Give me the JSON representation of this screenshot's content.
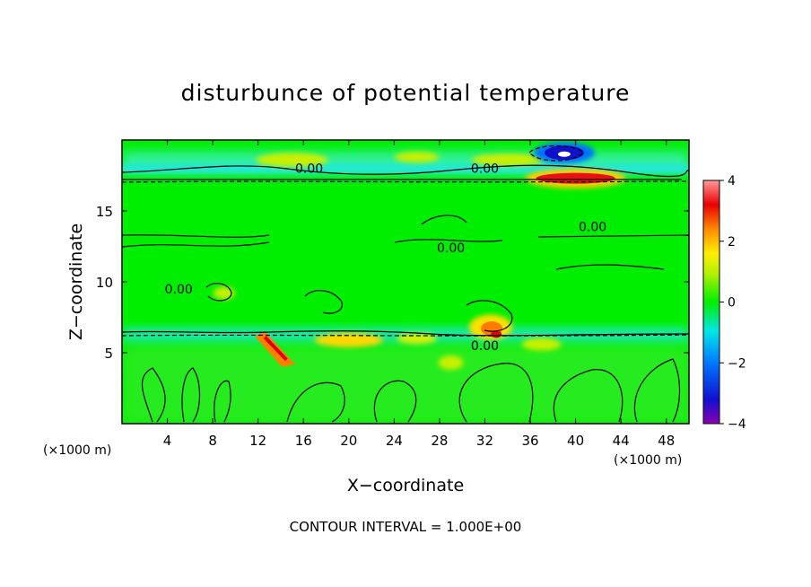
{
  "chart_data": {
    "type": "heatmap",
    "title": "disturbunce of potential temperature",
    "xlabel": "X−coordinate",
    "ylabel": "Z−coordinate",
    "x_unit_left": "(×1000 m)",
    "x_unit_right": "(×1000 m)",
    "xlim": [
      0,
      50
    ],
    "ylim": [
      0,
      20
    ],
    "x_ticks": [
      4,
      8,
      12,
      16,
      20,
      24,
      28,
      32,
      36,
      40,
      44,
      48
    ],
    "y_ticks": [
      5,
      10,
      15
    ],
    "colorbar": {
      "range": [
        -4,
        4
      ],
      "ticks": [
        4,
        2,
        0,
        -2,
        -4
      ]
    },
    "contour_labels": [
      {
        "x": 16.5,
        "z": 18.0,
        "text": "0.00"
      },
      {
        "x": 32.0,
        "z": 18.0,
        "text": "0.00"
      },
      {
        "x": 41.5,
        "z": 13.9,
        "text": "0.00"
      },
      {
        "x": 29.0,
        "z": 12.4,
        "text": "0.00"
      },
      {
        "x": 5.0,
        "z": 9.5,
        "text": "0.00"
      },
      {
        "x": 32.0,
        "z": 5.5,
        "text": "0.00"
      }
    ],
    "features": [
      {
        "name": "cold-anomaly",
        "x": 39,
        "z": 19.0,
        "value": -4
      },
      {
        "name": "warm-anomaly",
        "x": 40,
        "z": 17.3,
        "value": 3.5
      },
      {
        "name": "warm-anomaly",
        "x": 13.5,
        "z": 5.5,
        "value": 3
      },
      {
        "name": "warm-anomaly",
        "x": 32.5,
        "z": 6.5,
        "value": 3
      },
      {
        "name": "warm-anomaly",
        "x": 20,
        "z": 5.8,
        "value": 1.5
      },
      {
        "name": "cool-band",
        "x": 25,
        "z": 6.1,
        "value": -1
      },
      {
        "name": "cool-band",
        "x": 25,
        "z": 17.7,
        "value": -1
      }
    ],
    "footer": "CONTOUR INTERVAL = 1.000E+00"
  }
}
